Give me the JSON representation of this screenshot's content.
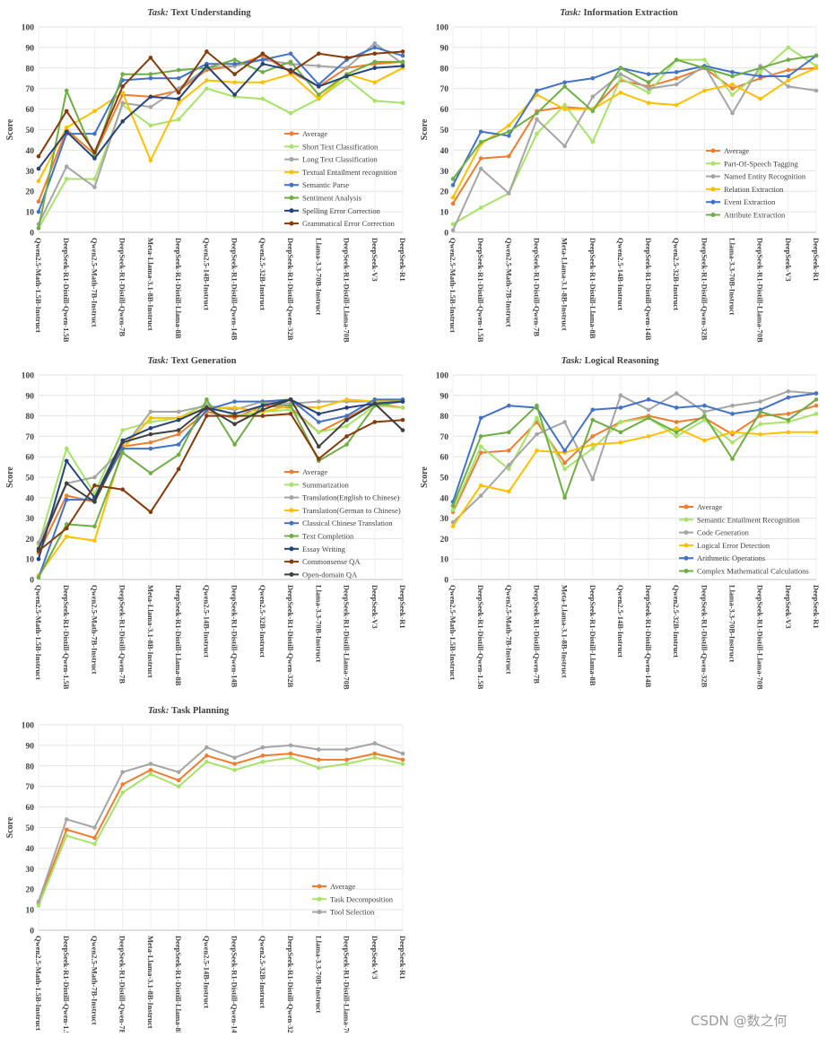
{
  "models": [
    "Qwen2.5-Math-1.5B-Instruct",
    "DeepSeek-R1-Distill-Qwen-1.5B",
    "Qwen2.5-Math-7B-Instruct",
    "DeepSeek-R1-Distill-Qwen-7B",
    "Meta-Llama-3.1-8B-Instruct",
    "DeepSeek-R1-Distill-Llama-8B",
    "Qwen2.5-14B-Instruct",
    "DeepSeek-R1-Distill-Qwen-14B",
    "Qwen2.5-32B-Instruct",
    "DeepSeek-R1-Distill-Qwen-32B",
    "Llama-3.3-70B-Instruct",
    "DeepSeek-R1-Distill-Llama-70B",
    "DeepSeek-V3",
    "DeepSeek-R1"
  ],
  "task_prefix": "Task:",
  "watermark": "CSDN @数之何",
  "chart_data": [
    {
      "type": "line",
      "task": "Text Understanding",
      "ylabel": "Score",
      "ylim": [
        0,
        100
      ],
      "yticks": [
        0,
        10,
        20,
        30,
        40,
        50,
        60,
        70,
        80,
        90,
        100
      ],
      "grid": true,
      "legend_position": "center-right",
      "series": [
        {
          "name": "Average",
          "color": "#ed7d31",
          "values": [
            15,
            50,
            38,
            67,
            66,
            69,
            79,
            81,
            86,
            78,
            71,
            80,
            82,
            83
          ]
        },
        {
          "name": "Short Text Classification",
          "color": "#a9e26b",
          "values": [
            2,
            26,
            26,
            62,
            52,
            55,
            70,
            66,
            65,
            58,
            65,
            75,
            64,
            63
          ]
        },
        {
          "name": "Long Text Classification",
          "color": "#a5a5a5",
          "values": [
            4,
            32,
            22,
            63,
            61,
            70,
            80,
            81,
            84,
            82,
            81,
            80,
            92,
            82
          ]
        },
        {
          "name": "Textual Entailment recognition",
          "color": "#ffc000",
          "values": [
            25,
            51,
            59,
            68,
            35,
            63,
            74,
            73,
            73,
            77,
            65,
            77,
            73,
            80
          ]
        },
        {
          "name": "Semantic Parse",
          "color": "#4472c4",
          "values": [
            10,
            48,
            48,
            74,
            75,
            75,
            82,
            82,
            84,
            87,
            72,
            84,
            90,
            86
          ]
        },
        {
          "name": "Sentiment Analysis",
          "color": "#70ad47",
          "values": [
            2,
            69,
            37,
            77,
            77,
            79,
            80,
            84,
            78,
            83,
            67,
            77,
            83,
            83
          ]
        },
        {
          "name": "Spelling Error Correction",
          "color": "#264478",
          "values": [
            31,
            49,
            36,
            54,
            66,
            65,
            81,
            67,
            82,
            79,
            71,
            76,
            80,
            81
          ]
        },
        {
          "name": "Grammatical Error Correction",
          "color": "#843c0c",
          "values": [
            37,
            59,
            39,
            71,
            85,
            68,
            88,
            77,
            87,
            78,
            87,
            85,
            87,
            88
          ]
        }
      ]
    },
    {
      "type": "line",
      "task": "Information Extraction",
      "ylabel": "Score",
      "ylim": [
        0,
        100
      ],
      "yticks": [
        0,
        10,
        20,
        30,
        40,
        50,
        60,
        70,
        80,
        90,
        100
      ],
      "grid": true,
      "legend_position": "center-right",
      "series": [
        {
          "name": "Average",
          "color": "#ed7d31",
          "values": [
            14,
            36,
            37,
            59,
            61,
            60,
            74,
            71,
            75,
            80,
            70,
            75,
            79,
            80
          ]
        },
        {
          "name": "Part-Of-Speech Tagging",
          "color": "#a9e26b",
          "values": [
            4,
            12,
            19,
            48,
            62,
            44,
            75,
            68,
            84,
            84,
            67,
            78,
            90,
            81
          ]
        },
        {
          "name": "Named Entity Recognition",
          "color": "#a5a5a5",
          "values": [
            1,
            31,
            19,
            55,
            42,
            66,
            77,
            70,
            72,
            81,
            58,
            81,
            71,
            69
          ]
        },
        {
          "name": "Relation Extraction",
          "color": "#ffc000",
          "values": [
            17,
            43,
            52,
            67,
            60,
            60,
            68,
            63,
            62,
            69,
            72,
            65,
            74,
            80
          ]
        },
        {
          "name": "Event Extraction",
          "color": "#4472c4",
          "values": [
            23,
            49,
            47,
            69,
            73,
            75,
            80,
            77,
            78,
            81,
            78,
            76,
            76,
            86
          ]
        },
        {
          "name": "Attribute Extraction",
          "color": "#70ad47",
          "values": [
            26,
            44,
            49,
            58,
            71,
            59,
            80,
            73,
            84,
            80,
            76,
            80,
            84,
            86
          ]
        }
      ]
    },
    {
      "type": "line",
      "task": "Text Generation",
      "ylabel": "Score",
      "ylim": [
        0,
        100
      ],
      "yticks": [
        0,
        10,
        20,
        30,
        40,
        50,
        60,
        70,
        80,
        90,
        100
      ],
      "grid": true,
      "legend_position": "center-right",
      "series": [
        {
          "name": "Average",
          "color": "#ed7d31",
          "values": [
            13,
            41,
            38,
            65,
            67,
            71,
            82,
            79,
            85,
            84,
            72,
            79,
            86,
            84
          ]
        },
        {
          "name": "Summarization",
          "color": "#a9e26b",
          "values": [
            17,
            64,
            42,
            73,
            77,
            79,
            86,
            80,
            82,
            83,
            72,
            75,
            85,
            84
          ]
        },
        {
          "name": "Translation(English to Chinese)",
          "color": "#a5a5a5",
          "values": [
            18,
            47,
            50,
            64,
            82,
            82,
            85,
            83,
            87,
            86,
            87,
            87,
            87,
            87
          ]
        },
        {
          "name": "Translation(German to Chinese)",
          "color": "#ffc000",
          "values": [
            2,
            21,
            19,
            64,
            79,
            79,
            84,
            84,
            82,
            85,
            84,
            88,
            87,
            88
          ]
        },
        {
          "name": "Classical Chinese Translation",
          "color": "#4472c4",
          "values": [
            1,
            39,
            39,
            64,
            64,
            66,
            83,
            87,
            87,
            88,
            77,
            80,
            88,
            88
          ]
        },
        {
          "name": "Text Completion",
          "color": "#70ad47",
          "values": [
            1,
            27,
            26,
            62,
            52,
            61,
            88,
            66,
            86,
            85,
            58,
            66,
            85,
            87
          ]
        },
        {
          "name": "Essay Writing",
          "color": "#264478",
          "values": [
            10,
            58,
            40,
            68,
            74,
            78,
            84,
            81,
            85,
            88,
            81,
            84,
            86,
            87
          ]
        },
        {
          "name": "Commonsense QA",
          "color": "#843c0c",
          "values": [
            14,
            25,
            46,
            44,
            33,
            54,
            80,
            80,
            80,
            81,
            59,
            70,
            77,
            78
          ]
        },
        {
          "name": "Open-domain QA",
          "color": "#404040",
          "values": [
            15,
            47,
            38,
            67,
            71,
            73,
            84,
            76,
            83,
            88,
            65,
            78,
            86,
            73
          ]
        }
      ]
    },
    {
      "type": "line",
      "task": "Logical Reasoning",
      "ylabel": "Score",
      "ylim": [
        0,
        100
      ],
      "yticks": [
        0,
        10,
        20,
        30,
        40,
        50,
        60,
        70,
        80,
        90,
        100
      ],
      "grid": true,
      "legend_position": "center-right",
      "series": [
        {
          "name": "Average",
          "color": "#ed7d31",
          "values": [
            33,
            62,
            63,
            77,
            57,
            70,
            77,
            80,
            77,
            79,
            71,
            80,
            81,
            85
          ]
        },
        {
          "name": "Semantic Entailment Recognition",
          "color": "#a9e26b",
          "values": [
            34,
            65,
            54,
            79,
            54,
            64,
            77,
            79,
            70,
            78,
            67,
            76,
            77,
            81
          ]
        },
        {
          "name": "Code Generation",
          "color": "#a5a5a5",
          "values": [
            28,
            41,
            56,
            71,
            77,
            49,
            90,
            83,
            91,
            82,
            85,
            87,
            92,
            91
          ]
        },
        {
          "name": "Logical Error Detection",
          "color": "#ffc000",
          "values": [
            26,
            46,
            43,
            63,
            62,
            66,
            67,
            70,
            74,
            68,
            72,
            71,
            72,
            72
          ]
        },
        {
          "name": "Arithmetic Operations",
          "color": "#4472c4",
          "values": [
            38,
            79,
            85,
            84,
            63,
            83,
            84,
            88,
            84,
            85,
            81,
            83,
            89,
            91
          ]
        },
        {
          "name": "Complex Mathematical Calculations",
          "color": "#70ad47",
          "values": [
            36,
            70,
            72,
            85,
            40,
            78,
            72,
            79,
            72,
            80,
            59,
            82,
            78,
            88
          ]
        }
      ]
    },
    {
      "type": "line",
      "task": "Task Planning",
      "ylabel": "Score",
      "ylim": [
        0,
        100
      ],
      "yticks": [
        0,
        10,
        20,
        30,
        40,
        50,
        60,
        70,
        80,
        90,
        100
      ],
      "grid": true,
      "legend_position": "center-right",
      "series": [
        {
          "name": "Average",
          "color": "#ed7d31",
          "values": [
            13,
            49,
            45,
            71,
            78,
            73,
            85,
            81,
            85,
            86,
            83,
            83,
            86,
            83
          ]
        },
        {
          "name": "Task Decomposition",
          "color": "#a9e26b",
          "values": [
            12,
            46,
            42,
            67,
            76,
            70,
            82,
            78,
            82,
            84,
            79,
            81,
            84,
            81
          ]
        },
        {
          "name": "Tool Selection",
          "color": "#a5a5a5",
          "values": [
            14,
            54,
            50,
            77,
            81,
            77,
            89,
            84,
            89,
            90,
            88,
            88,
            91,
            86
          ]
        }
      ]
    }
  ]
}
